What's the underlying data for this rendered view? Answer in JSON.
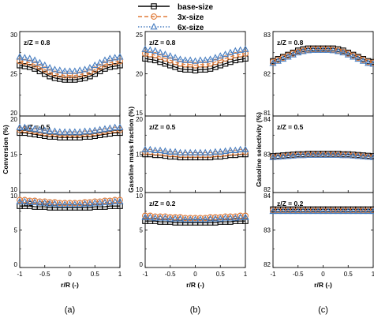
{
  "legend": {
    "placement": "top-center",
    "entries": [
      {
        "label": "base-size",
        "line": "solid",
        "marker": "square",
        "color": "#000000"
      },
      {
        "label": "3x-size",
        "line": "dashed",
        "marker": "circle",
        "color": "#e07b39"
      },
      {
        "label": "6x-size",
        "line": "dotted",
        "marker": "triangle",
        "color": "#4a7fc1"
      }
    ]
  },
  "chart_data": [
    {
      "type": "line",
      "panel_label": "(a)",
      "ylabel": "Conversion (%)",
      "xlabel": "r/R (-)",
      "xlim": [
        -1,
        1
      ],
      "xticks": [
        "-1",
        "-0.5",
        "0",
        "0.5",
        "1"
      ],
      "grid": false,
      "x": [
        -1,
        -0.9,
        -0.8,
        -0.7,
        -0.6,
        -0.5,
        -0.4,
        -0.3,
        -0.2,
        -0.1,
        0,
        0.1,
        0.2,
        0.3,
        0.4,
        0.5,
        0.6,
        0.7,
        0.8,
        0.9,
        1
      ],
      "subplots": [
        {
          "annotation": "z/Z = 0.8",
          "ylim": [
            20,
            30
          ],
          "yticks": [
            "20",
            "25",
            "30"
          ],
          "series": [
            {
              "name": "base-size",
              "values": [
                26.0,
                25.9,
                25.8,
                25.6,
                25.3,
                25.0,
                24.7,
                24.5,
                24.4,
                24.3,
                24.3,
                24.3,
                24.4,
                24.5,
                24.7,
                25.0,
                25.3,
                25.6,
                25.8,
                25.9,
                26.0
              ]
            },
            {
              "name": "3x-size",
              "values": [
                26.5,
                26.4,
                26.3,
                26.1,
                25.8,
                25.5,
                25.2,
                25.0,
                24.9,
                24.8,
                24.8,
                24.8,
                24.9,
                25.0,
                25.2,
                25.5,
                25.8,
                26.1,
                26.3,
                26.4,
                26.5
              ]
            },
            {
              "name": "6x-size",
              "values": [
                27.0,
                26.9,
                26.8,
                26.6,
                26.3,
                26.0,
                25.7,
                25.5,
                25.4,
                25.3,
                25.3,
                25.3,
                25.4,
                25.5,
                25.7,
                26.0,
                26.3,
                26.6,
                26.8,
                26.9,
                27.0
              ]
            }
          ]
        },
        {
          "annotation": "z/Z = 0.5",
          "ylim": [
            10,
            20
          ],
          "yticks": [
            "10",
            "15",
            "20"
          ],
          "series": [
            {
              "name": "base-size",
              "values": [
                17.8,
                17.8,
                17.7,
                17.6,
                17.5,
                17.4,
                17.3,
                17.3,
                17.2,
                17.2,
                17.2,
                17.2,
                17.2,
                17.3,
                17.3,
                17.4,
                17.5,
                17.6,
                17.7,
                17.8,
                17.8
              ]
            },
            {
              "name": "3x-size",
              "values": [
                18.2,
                18.2,
                18.1,
                18.0,
                17.9,
                17.8,
                17.7,
                17.7,
                17.6,
                17.6,
                17.6,
                17.6,
                17.6,
                17.7,
                17.7,
                17.8,
                17.9,
                18.0,
                18.1,
                18.2,
                18.2
              ]
            },
            {
              "name": "6x-size",
              "values": [
                18.5,
                18.5,
                18.4,
                18.3,
                18.2,
                18.1,
                18.0,
                18.0,
                17.9,
                17.9,
                17.9,
                17.9,
                17.9,
                18.0,
                18.0,
                18.1,
                18.2,
                18.3,
                18.4,
                18.5,
                18.5
              ]
            }
          ]
        },
        {
          "annotation": "z/Z = 0.2",
          "ylim": [
            0,
            10
          ],
          "yticks": [
            "0",
            "5",
            "10"
          ],
          "series": [
            {
              "name": "base-size",
              "values": [
                8.2,
                8.2,
                8.2,
                8.1,
                8.1,
                8.1,
                8.0,
                8.0,
                8.0,
                8.0,
                8.0,
                8.0,
                8.0,
                8.0,
                8.0,
                8.1,
                8.1,
                8.1,
                8.2,
                8.2,
                8.2
              ]
            },
            {
              "name": "3x-size",
              "values": [
                9.0,
                9.0,
                8.9,
                8.9,
                8.8,
                8.8,
                8.7,
                8.7,
                8.6,
                8.6,
                8.6,
                8.6,
                8.6,
                8.7,
                8.7,
                8.8,
                8.8,
                8.9,
                8.9,
                9.0,
                9.0
              ]
            },
            {
              "name": "6x-size",
              "values": [
                8.8,
                8.8,
                8.7,
                8.7,
                8.6,
                8.6,
                8.5,
                8.5,
                8.4,
                8.4,
                8.4,
                8.4,
                8.4,
                8.5,
                8.5,
                8.6,
                8.6,
                8.7,
                8.7,
                8.8,
                8.8
              ]
            }
          ]
        }
      ]
    },
    {
      "type": "line",
      "panel_label": "(b)",
      "ylabel": "Gasoline mass fraction (%)",
      "xlabel": "r/R (-)",
      "xlim": [
        -1,
        1
      ],
      "xticks": [
        "-1",
        "-0.5",
        "0",
        "0.5",
        "1"
      ],
      "grid": false,
      "x": [
        -1,
        -0.9,
        -0.8,
        -0.7,
        -0.6,
        -0.5,
        -0.4,
        -0.3,
        -0.2,
        -0.1,
        0,
        0.1,
        0.2,
        0.3,
        0.4,
        0.5,
        0.6,
        0.7,
        0.8,
        0.9,
        1
      ],
      "subplots": [
        {
          "annotation": "z/Z = 0.8",
          "ylim": [
            15,
            25
          ],
          "yticks": [
            "15",
            "20",
            "25"
          ],
          "series": [
            {
              "name": "base-size",
              "values": [
                21.8,
                21.7,
                21.6,
                21.4,
                21.2,
                21.0,
                20.8,
                20.6,
                20.5,
                20.5,
                20.4,
                20.5,
                20.5,
                20.6,
                20.8,
                21.0,
                21.2,
                21.4,
                21.6,
                21.7,
                21.8
              ]
            },
            {
              "name": "3x-size",
              "values": [
                22.4,
                22.3,
                22.2,
                22.0,
                21.8,
                21.6,
                21.4,
                21.2,
                21.1,
                21.1,
                21.0,
                21.1,
                21.1,
                21.2,
                21.4,
                21.6,
                21.8,
                22.0,
                22.2,
                22.3,
                22.4
              ]
            },
            {
              "name": "6x-size",
              "values": [
                22.9,
                22.8,
                22.7,
                22.5,
                22.3,
                22.1,
                21.9,
                21.7,
                21.6,
                21.6,
                21.5,
                21.6,
                21.6,
                21.7,
                21.9,
                22.1,
                22.3,
                22.5,
                22.7,
                22.8,
                22.9
              ]
            }
          ]
        },
        {
          "annotation": "z/Z = 0.5",
          "ylim": [
            10,
            20
          ],
          "yticks": [
            "10",
            "15",
            "20"
          ],
          "series": [
            {
              "name": "base-size",
              "values": [
                15.0,
                15.0,
                14.9,
                14.9,
                14.8,
                14.7,
                14.7,
                14.6,
                14.6,
                14.6,
                14.6,
                14.6,
                14.6,
                14.6,
                14.7,
                14.7,
                14.8,
                14.9,
                14.9,
                15.0,
                15.0
              ]
            },
            {
              "name": "3x-size",
              "values": [
                15.3,
                15.3,
                15.2,
                15.2,
                15.1,
                15.0,
                15.0,
                14.9,
                14.9,
                14.9,
                14.9,
                14.9,
                14.9,
                14.9,
                15.0,
                15.0,
                15.1,
                15.2,
                15.2,
                15.3,
                15.3
              ]
            },
            {
              "name": "6x-size",
              "values": [
                15.6,
                15.6,
                15.5,
                15.5,
                15.4,
                15.3,
                15.3,
                15.2,
                15.2,
                15.2,
                15.2,
                15.2,
                15.2,
                15.2,
                15.3,
                15.3,
                15.4,
                15.5,
                15.5,
                15.6,
                15.6
              ]
            }
          ]
        },
        {
          "annotation": "z/Z = 0.2",
          "ylim": [
            0,
            10
          ],
          "yticks": [
            "0",
            "5",
            "10"
          ],
          "series": [
            {
              "name": "base-size",
              "values": [
                6.2,
                6.2,
                6.2,
                6.1,
                6.1,
                6.1,
                6.0,
                6.0,
                6.0,
                6.0,
                6.0,
                6.0,
                6.0,
                6.0,
                6.0,
                6.1,
                6.1,
                6.1,
                6.2,
                6.2,
                6.2
              ]
            },
            {
              "name": "3x-size",
              "values": [
                6.9,
                6.9,
                6.8,
                6.8,
                6.8,
                6.7,
                6.7,
                6.7,
                6.6,
                6.6,
                6.6,
                6.6,
                6.6,
                6.7,
                6.7,
                6.7,
                6.8,
                6.8,
                6.8,
                6.9,
                6.9
              ]
            },
            {
              "name": "6x-size",
              "values": [
                6.7,
                6.7,
                6.6,
                6.6,
                6.6,
                6.5,
                6.5,
                6.5,
                6.4,
                6.4,
                6.4,
                6.4,
                6.4,
                6.5,
                6.5,
                6.5,
                6.6,
                6.6,
                6.6,
                6.7,
                6.7
              ]
            }
          ]
        }
      ]
    },
    {
      "type": "line",
      "panel_label": "(c)",
      "ylabel": "Gasoline selectivity (%)",
      "xlabel": "r/R (-)",
      "xlim": [
        -1,
        1
      ],
      "xticks": [
        "-1",
        "-0.5",
        "0",
        "0.5",
        "1"
      ],
      "grid": false,
      "x": [
        -1,
        -0.9,
        -0.8,
        -0.7,
        -0.6,
        -0.5,
        -0.4,
        -0.3,
        -0.2,
        -0.1,
        0,
        0.1,
        0.2,
        0.3,
        0.4,
        0.5,
        0.6,
        0.7,
        0.8,
        0.9,
        1
      ],
      "subplots": [
        {
          "annotation": "z/Z = 0.8",
          "ylim": [
            81,
            83
          ],
          "yticks": [
            "81",
            "82",
            "83"
          ],
          "series": [
            {
              "name": "base-size",
              "values": [
                82.3,
                82.35,
                82.4,
                82.45,
                82.5,
                82.55,
                82.58,
                82.6,
                82.6,
                82.6,
                82.6,
                82.6,
                82.6,
                82.58,
                82.55,
                82.5,
                82.45,
                82.4,
                82.35,
                82.3,
                82.28
              ]
            },
            {
              "name": "3x-size",
              "values": [
                82.28,
                82.33,
                82.38,
                82.43,
                82.48,
                82.52,
                82.55,
                82.57,
                82.58,
                82.58,
                82.58,
                82.58,
                82.57,
                82.55,
                82.52,
                82.48,
                82.43,
                82.38,
                82.33,
                82.28,
                82.26
              ]
            },
            {
              "name": "6x-size",
              "values": [
                82.25,
                82.3,
                82.35,
                82.4,
                82.45,
                82.5,
                82.53,
                82.55,
                82.56,
                82.56,
                82.56,
                82.56,
                82.55,
                82.53,
                82.5,
                82.45,
                82.4,
                82.35,
                82.3,
                82.25,
                82.23
              ]
            }
          ]
        },
        {
          "annotation": "z/Z = 0.5",
          "ylim": [
            82,
            84
          ],
          "yticks": [
            "82",
            "83",
            "84"
          ],
          "series": [
            {
              "name": "base-size",
              "values": [
                82.95,
                82.96,
                82.97,
                82.98,
                82.99,
                83.0,
                83.0,
                83.01,
                83.01,
                83.01,
                83.01,
                83.01,
                83.01,
                83.01,
                83.0,
                83.0,
                82.99,
                82.98,
                82.97,
                82.96,
                82.95
              ]
            },
            {
              "name": "3x-size",
              "values": [
                82.93,
                82.94,
                82.95,
                82.96,
                82.97,
                82.98,
                82.98,
                82.99,
                82.99,
                82.99,
                82.99,
                82.99,
                82.99,
                82.99,
                82.98,
                82.98,
                82.97,
                82.96,
                82.95,
                82.94,
                82.93
              ]
            },
            {
              "name": "6x-size",
              "values": [
                82.92,
                82.93,
                82.94,
                82.95,
                82.96,
                82.97,
                82.97,
                82.98,
                82.98,
                82.98,
                82.98,
                82.98,
                82.98,
                82.98,
                82.97,
                82.97,
                82.96,
                82.95,
                82.94,
                82.93,
                82.92
              ]
            }
          ]
        },
        {
          "annotation": "z/Z = 0.2",
          "ylim": [
            82,
            84
          ],
          "yticks": [
            "82",
            "83",
            "84"
          ],
          "series": [
            {
              "name": "base-size",
              "values": [
                83.55,
                83.55,
                83.55,
                83.55,
                83.55,
                83.55,
                83.55,
                83.55,
                83.55,
                83.55,
                83.55,
                83.55,
                83.55,
                83.55,
                83.55,
                83.55,
                83.55,
                83.55,
                83.55,
                83.55,
                83.55
              ]
            },
            {
              "name": "3x-size",
              "values": [
                83.52,
                83.52,
                83.52,
                83.52,
                83.52,
                83.52,
                83.52,
                83.52,
                83.52,
                83.52,
                83.52,
                83.52,
                83.52,
                83.52,
                83.52,
                83.52,
                83.52,
                83.52,
                83.52,
                83.52,
                83.52
              ]
            },
            {
              "name": "6x-size",
              "values": [
                83.5,
                83.5,
                83.5,
                83.5,
                83.5,
                83.5,
                83.5,
                83.5,
                83.5,
                83.5,
                83.5,
                83.5,
                83.5,
                83.5,
                83.5,
                83.5,
                83.5,
                83.5,
                83.5,
                83.5,
                83.5
              ]
            }
          ]
        }
      ]
    }
  ]
}
